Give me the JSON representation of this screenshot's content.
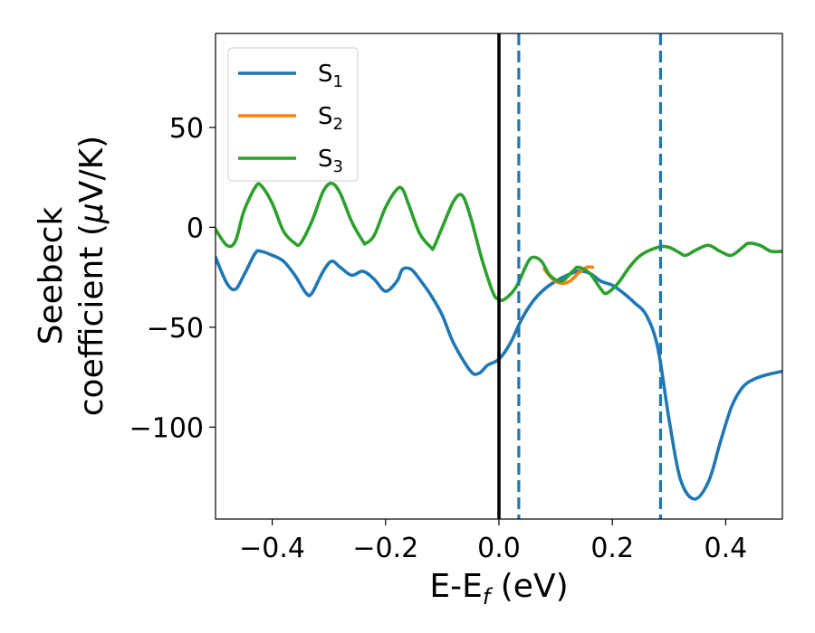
{
  "chart_data": {
    "type": "line",
    "xlabel": "E-E",
    "xlabel_sub": "f",
    "xlabel_unit": " (eV)",
    "ylabel_line1": "Seebeck",
    "ylabel_line2_pre": "coefficient  (",
    "ylabel_line2_mu": "μ",
    "ylabel_line2_post": "V/K)",
    "xlim": [
      -0.5,
      0.5
    ],
    "ylim": [
      -146,
      97
    ],
    "xticks": [
      -0.4,
      -0.2,
      0.0,
      0.2,
      0.4
    ],
    "xtick_labels": [
      "−0.4",
      "−0.2",
      "0.0",
      "0.2",
      "0.4"
    ],
    "yticks": [
      -100,
      -50,
      0,
      50
    ],
    "ytick_labels": [
      "−100",
      "−50",
      "0",
      "50"
    ],
    "grid": false,
    "legend_position": "upper-left",
    "vlines": [
      {
        "x": 0.0,
        "style": "solid",
        "color": "#000000"
      },
      {
        "x": 0.035,
        "style": "dashed",
        "color": "#1f77b4"
      },
      {
        "x": 0.285,
        "style": "dashed",
        "color": "#1f77b4"
      }
    ],
    "series": [
      {
        "name": "S",
        "sub": "1",
        "color": "#1f77b4",
        "x": [
          -0.5,
          -0.48,
          -0.465,
          -0.45,
          -0.43,
          -0.42,
          -0.4,
          -0.38,
          -0.36,
          -0.34,
          -0.33,
          -0.31,
          -0.295,
          -0.28,
          -0.26,
          -0.24,
          -0.22,
          -0.2,
          -0.18,
          -0.17,
          -0.155,
          -0.14,
          -0.12,
          -0.1,
          -0.08,
          -0.05,
          -0.035,
          -0.02,
          0.0,
          0.02,
          0.04,
          0.06,
          0.08,
          0.1,
          0.12,
          0.14,
          0.16,
          0.18,
          0.2,
          0.22,
          0.24,
          0.26,
          0.28,
          0.3,
          0.32,
          0.345,
          0.37,
          0.39,
          0.41,
          0.43,
          0.45,
          0.47,
          0.5
        ],
        "y": [
          -15,
          -28,
          -31,
          -24,
          -13,
          -12,
          -14,
          -17,
          -24,
          -33,
          -33,
          -22,
          -17,
          -20,
          -24,
          -22,
          -26,
          -32,
          -27,
          -21,
          -21,
          -26,
          -34,
          -44,
          -58,
          -72,
          -73,
          -69,
          -66,
          -58,
          -46,
          -37,
          -31,
          -27,
          -24,
          -22,
          -23,
          -27,
          -29,
          -33,
          -38,
          -44,
          -60,
          -96,
          -126,
          -136,
          -127,
          -108,
          -90,
          -80,
          -76,
          -74,
          -72
        ]
      },
      {
        "name": "S",
        "sub": "2",
        "color": "#ff7f0e",
        "x": [
          0.08,
          0.095,
          0.11,
          0.125,
          0.14,
          0.155,
          0.165
        ],
        "y": [
          -21,
          -26,
          -28,
          -27,
          -23,
          -20,
          -20
        ]
      },
      {
        "name": "S",
        "sub": "3",
        "color": "#2ca02c",
        "x": [
          -0.5,
          -0.48,
          -0.465,
          -0.45,
          -0.43,
          -0.42,
          -0.4,
          -0.38,
          -0.36,
          -0.35,
          -0.33,
          -0.31,
          -0.295,
          -0.28,
          -0.26,
          -0.24,
          -0.235,
          -0.22,
          -0.2,
          -0.18,
          -0.17,
          -0.16,
          -0.14,
          -0.12,
          -0.115,
          -0.1,
          -0.08,
          -0.065,
          -0.05,
          -0.03,
          -0.01,
          0.0,
          0.01,
          0.03,
          0.05,
          0.06,
          0.075,
          0.09,
          0.11,
          0.13,
          0.14,
          0.16,
          0.18,
          0.19,
          0.21,
          0.23,
          0.25,
          0.28,
          0.3,
          0.32,
          0.33,
          0.35,
          0.37,
          0.39,
          0.41,
          0.43,
          0.44,
          0.46,
          0.48,
          0.5
        ],
        "y": [
          -1,
          -9,
          -7,
          8,
          20,
          21,
          12,
          -2,
          -8,
          -8,
          3,
          18,
          22,
          17,
          3,
          -7,
          -8,
          -4,
          10,
          19,
          19,
          12,
          -3,
          -10,
          -10,
          0,
          13,
          16,
          5,
          -16,
          -33,
          -36,
          -36,
          -30,
          -18,
          -15,
          -17,
          -24,
          -27,
          -22,
          -20,
          -23,
          -31,
          -33,
          -28,
          -20,
          -14,
          -10,
          -10,
          -13,
          -14,
          -11,
          -9,
          -12,
          -14,
          -10,
          -8,
          -9,
          -12,
          -12
        ]
      }
    ]
  }
}
